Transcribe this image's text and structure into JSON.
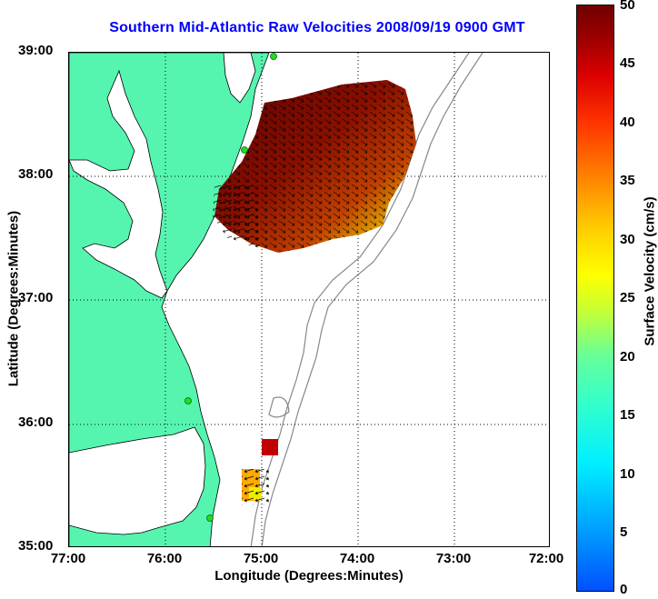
{
  "title": "Southern Mid-Atlantic Raw Velocities 2008/09/19 0900 GMT",
  "xlabel": "Longitude (Degrees:Minutes)",
  "ylabel": "Latitude (Degrees:Minutes)",
  "colorbar_label": "Surface Velocity (cm/s)",
  "x_ticks": [
    "77:00",
    "76:00",
    "75:00",
    "74:00",
    "73:00",
    "72:00"
  ],
  "y_ticks": [
    "39:00",
    "38:00",
    "37:00",
    "36:00",
    "35:00"
  ],
  "colorbar_ticks": [
    "50",
    "45",
    "40",
    "35",
    "30",
    "25",
    "20",
    "15",
    "10",
    "5",
    "0"
  ],
  "colors": {
    "land": "#55f5b0",
    "title": "#0000ff",
    "bathymetry": "#888888"
  },
  "map": {
    "lon_range": [
      -77,
      -72
    ],
    "lat_range": [
      35,
      39
    ],
    "colorbar_range_cm_s": [
      0,
      50
    ],
    "grid": "dotted"
  }
}
